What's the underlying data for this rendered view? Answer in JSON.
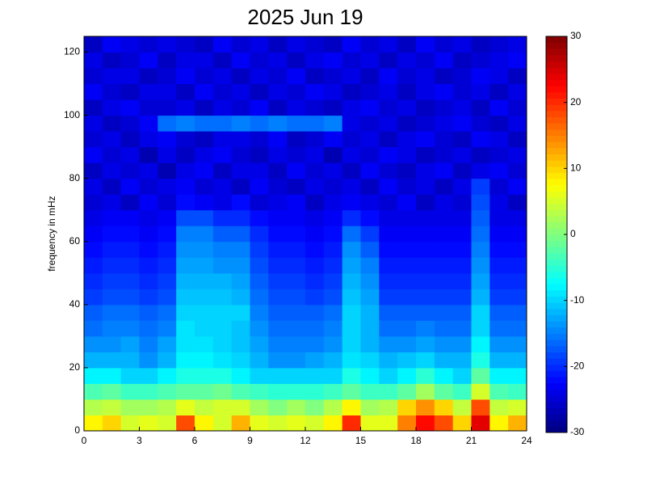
{
  "chart_data": {
    "type": "heatmap",
    "title": "2025 Jun 19",
    "y_label": "frequency in mHz",
    "colormap": "jet",
    "xbins": [
      0,
      1,
      2,
      3,
      4,
      5,
      6,
      7,
      8,
      9,
      10,
      11,
      12,
      13,
      14,
      15,
      16,
      17,
      18,
      19,
      20,
      21,
      22,
      23,
      24
    ],
    "ybins": [
      0,
      5,
      10,
      15,
      20,
      25,
      30,
      35,
      40,
      45,
      50,
      55,
      60,
      65,
      70,
      75,
      80,
      85,
      90,
      95,
      100,
      105,
      110,
      115,
      120,
      125
    ],
    "xlim": [
      0,
      24
    ],
    "xticks": [
      0,
      3,
      6,
      9,
      12,
      15,
      18,
      21,
      24
    ],
    "ylim": [
      0,
      125
    ],
    "yticks": [
      0,
      20,
      40,
      60,
      80,
      100,
      120
    ],
    "clim": [
      -30,
      30
    ],
    "cticks": [
      -30,
      -20,
      -10,
      0,
      10,
      20,
      30
    ],
    "values": [
      [
        8,
        10,
        5,
        6,
        5,
        18,
        8,
        5,
        12,
        6,
        5,
        6,
        5,
        8,
        20,
        6,
        6,
        15,
        22,
        18,
        10,
        24,
        8,
        12
      ],
      [
        3,
        4,
        2,
        2,
        3,
        6,
        4,
        5,
        5,
        2,
        0,
        2,
        0,
        3,
        8,
        2,
        3,
        10,
        14,
        10,
        4,
        18,
        4,
        5
      ],
      [
        -3,
        -2,
        -4,
        -4,
        -3,
        -2,
        -2,
        -1,
        -3,
        -4,
        -5,
        -5,
        -5,
        -4,
        -2,
        -4,
        -4,
        -2,
        2,
        -2,
        -4,
        5,
        -3,
        -4
      ],
      [
        -8,
        -8,
        -10,
        -10,
        -8,
        -6,
        -6,
        -6,
        -8,
        -10,
        -10,
        -10,
        -10,
        -10,
        -6,
        -8,
        -10,
        -8,
        -5,
        -8,
        -10,
        -2,
        -8,
        -8
      ],
      [
        -12,
        -12,
        -12,
        -14,
        -12,
        -8,
        -8,
        -9,
        -10,
        -12,
        -14,
        -14,
        -13,
        -12,
        -9,
        -10,
        -12,
        -11,
        -10,
        -12,
        -12,
        -6,
        -12,
        -12
      ],
      [
        -14,
        -14,
        -13,
        -15,
        -13,
        -9,
        -9,
        -10,
        -11,
        -13,
        -15,
        -15,
        -15,
        -14,
        -10,
        -12,
        -14,
        -14,
        -13,
        -14,
        -14,
        -8,
        -14,
        -14
      ],
      [
        -16,
        -15,
        -15,
        -16,
        -15,
        -9,
        -10,
        -10,
        -11,
        -14,
        -16,
        -16,
        -16,
        -15,
        -10,
        -12,
        -16,
        -16,
        -15,
        -16,
        -16,
        -10,
        -16,
        -16
      ],
      [
        -17,
        -16,
        -16,
        -17,
        -16,
        -10,
        -10,
        -10,
        -10,
        -15,
        -17,
        -17,
        -17,
        -16,
        -10,
        -12,
        -17,
        -17,
        -17,
        -17,
        -17,
        -10,
        -17,
        -17
      ],
      [
        -19,
        -18,
        -18,
        -19,
        -18,
        -11,
        -11,
        -11,
        -12,
        -16,
        -18,
        -18,
        -19,
        -18,
        -11,
        -13,
        -19,
        -19,
        -19,
        -19,
        -19,
        -12,
        -19,
        -19
      ],
      [
        -20,
        -19,
        -19,
        -20,
        -19,
        -12,
        -12,
        -12,
        -13,
        -17,
        -19,
        -19,
        -20,
        -19,
        -12,
        -14,
        -20,
        -20,
        -20,
        -20,
        -20,
        -13,
        -20,
        -20
      ],
      [
        -21,
        -20,
        -20,
        -21,
        -20,
        -13,
        -13,
        -14,
        -14,
        -18,
        -20,
        -20,
        -21,
        -20,
        -13,
        -15,
        -21,
        -21,
        -21,
        -21,
        -21,
        -14,
        -21,
        -21
      ],
      [
        -22,
        -21,
        -21,
        -22,
        -21,
        -14,
        -14,
        -15,
        -15,
        -19,
        -21,
        -21,
        -22,
        -21,
        -14,
        -17,
        -22,
        -22,
        -22,
        -22,
        -22,
        -15,
        -22,
        -22
      ],
      [
        -23,
        -22,
        -22,
        -23,
        -22,
        -15,
        -15,
        -17,
        -17,
        -20,
        -22,
        -22,
        -23,
        -22,
        -16,
        -19,
        -23,
        -23,
        -23,
        -23,
        -23,
        -16,
        -23,
        -23
      ],
      [
        -24,
        -23,
        -23,
        -24,
        -23,
        -18,
        -18,
        -20,
        -20,
        -22,
        -23,
        -23,
        -24,
        -23,
        -20,
        -22,
        -24,
        -24,
        -24,
        -24,
        -24,
        -17,
        -24,
        -24
      ],
      [
        -25,
        -24,
        -26,
        -23,
        -25,
        -22,
        -23,
        -24,
        -22,
        -25,
        -24,
        -23,
        -26,
        -24,
        -23,
        -24,
        -25,
        -23,
        -26,
        -24,
        -25,
        -18,
        -24,
        -26
      ],
      [
        -24,
        -26,
        -23,
        -25,
        -24,
        -23,
        -25,
        -24,
        -26,
        -23,
        -25,
        -26,
        -24,
        -25,
        -24,
        -26,
        -23,
        -25,
        -24,
        -26,
        -24,
        -19,
        -25,
        -23
      ],
      [
        -26,
        -24,
        -25,
        -24,
        -27,
        -24,
        -23,
        -26,
        -24,
        -24,
        -26,
        -23,
        -25,
        -24,
        -26,
        -23,
        -25,
        -26,
        -24,
        -23,
        -26,
        -24,
        -23,
        -25
      ],
      [
        -23,
        -25,
        -24,
        -27,
        -24,
        -26,
        -24,
        -23,
        -25,
        -26,
        -24,
        -25,
        -24,
        -27,
        -24,
        -25,
        -23,
        -24,
        -26,
        -25,
        -24,
        -26,
        -25,
        -24
      ],
      [
        -25,
        -24,
        -26,
        -24,
        -23,
        -25,
        -26,
        -24,
        -24,
        -25,
        -23,
        -26,
        -25,
        -23,
        -25,
        -24,
        -26,
        -24,
        -23,
        -25,
        -26,
        -23,
        -24,
        -26
      ],
      [
        -24,
        -26,
        -25,
        -23,
        -16,
        -15,
        -16,
        -16,
        -15,
        -16,
        -15,
        -16,
        -16,
        -15,
        -24,
        -25,
        -24,
        -26,
        -25,
        -24,
        -23,
        -25,
        -26,
        -24
      ],
      [
        -26,
        -24,
        -23,
        -25,
        -25,
        -24,
        -26,
        -24,
        -25,
        -23,
        -26,
        -24,
        -25,
        -26,
        -24,
        -23,
        -25,
        -24,
        -26,
        -25,
        -24,
        -26,
        -23,
        -25
      ],
      [
        -23,
        -25,
        -26,
        -24,
        -24,
        -26,
        -23,
        -25,
        -24,
        -26,
        -24,
        -25,
        -23,
        -24,
        -26,
        -25,
        -24,
        -26,
        -24,
        -23,
        -25,
        -24,
        -26,
        -24
      ],
      [
        -25,
        -24,
        -24,
        -26,
        -25,
        -23,
        -25,
        -24,
        -26,
        -24,
        -25,
        -23,
        -26,
        -25,
        -24,
        -26,
        -23,
        -25,
        -24,
        -26,
        -25,
        -23,
        -24,
        -26
      ],
      [
        -24,
        -26,
        -25,
        -23,
        -26,
        -24,
        -24,
        -26,
        -23,
        -25,
        -24,
        -26,
        -24,
        -23,
        -25,
        -24,
        -26,
        -24,
        -25,
        -23,
        -26,
        -25,
        -24,
        -23
      ],
      [
        -26,
        -23,
        -24,
        -25,
        -24,
        -25,
        -26,
        -23,
        -25,
        -24,
        -26,
        -24,
        -25,
        -26,
        -23,
        -25,
        -24,
        -26,
        -23,
        -25,
        -24,
        -26,
        -25,
        -24
      ]
    ]
  }
}
